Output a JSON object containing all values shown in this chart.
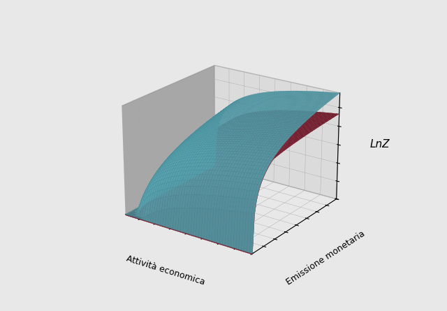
{
  "title": "",
  "zlabel": "LnZ",
  "xlabel": "Attività economica",
  "ylabel": "Emissione monetaria",
  "surface1_color": "#5ba8b5",
  "surface2_color": "#8b2035",
  "surface1_edge_color": "#4a8f9c",
  "surface2_edge_color": "#6b1525",
  "left_pane_color": "#d8d8d8",
  "right_pane_color": "#7a7a7a",
  "background_color": "#e8e8e8",
  "elev": 22,
  "azim": -55,
  "grid_linewidth": 0.25,
  "figsize": [
    6.4,
    4.45
  ],
  "dpi": 100
}
